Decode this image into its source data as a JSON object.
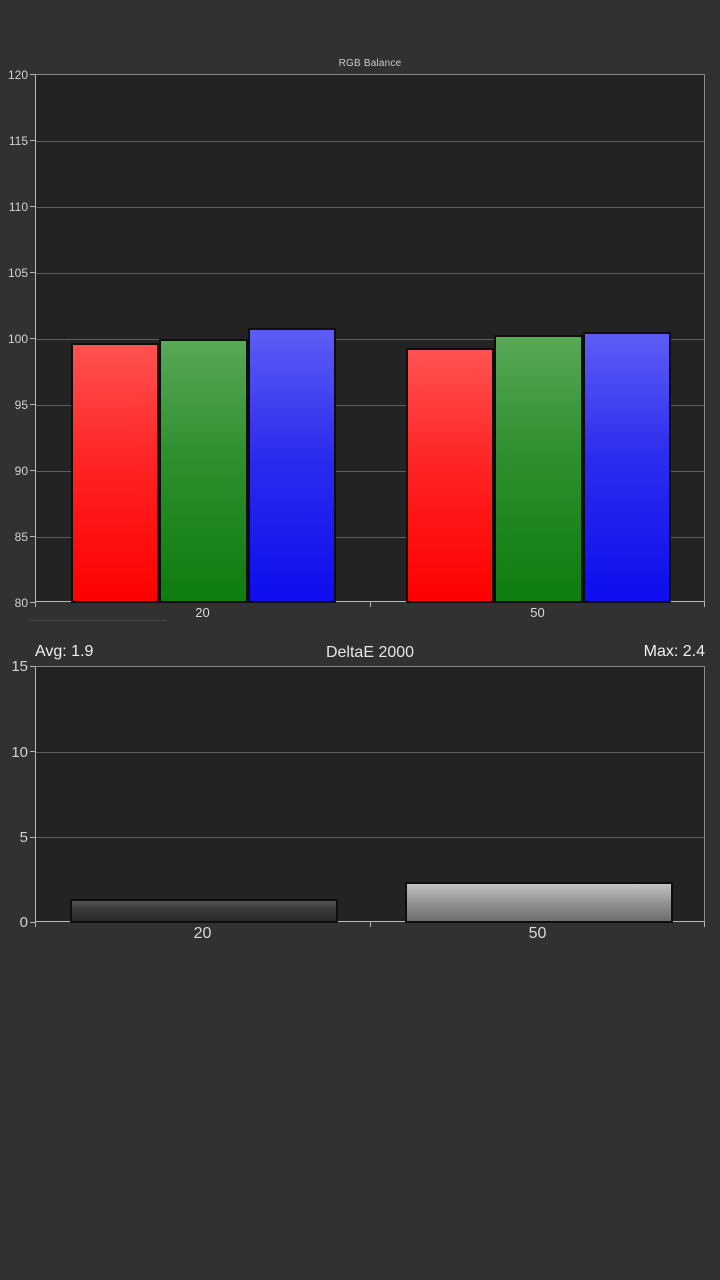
{
  "page": {
    "background_color": "#313131",
    "plot_background_color": "#232323"
  },
  "chart_data": [
    {
      "type": "bar",
      "title": "RGB Balance",
      "categories": [
        "20",
        "50"
      ],
      "series": [
        {
          "name": "Red",
          "values": [
            99.7,
            99.3
          ],
          "gradient": [
            "#ff5252",
            "#ff2424",
            "#fe0000"
          ]
        },
        {
          "name": "Green",
          "values": [
            100.0,
            100.3
          ],
          "gradient": [
            "#58a858",
            "#2e8f2e",
            "#0e7c0e"
          ]
        },
        {
          "name": "Blue",
          "values": [
            100.8,
            100.5
          ],
          "gradient": [
            "#5d5df5",
            "#2d2dee",
            "#0d0dee"
          ]
        }
      ],
      "ylim": [
        80,
        120
      ],
      "yticks": [
        80,
        85,
        90,
        95,
        100,
        105,
        110,
        115,
        120
      ],
      "grid": true,
      "legend": "none"
    },
    {
      "type": "bar",
      "title": "DeltaE 2000",
      "categories": [
        "20",
        "50"
      ],
      "values": [
        1.4,
        2.4
      ],
      "bar_gradients": [
        [
          "#525252",
          "#383838",
          "#282828"
        ],
        [
          "#c4c4c4",
          "#979797",
          "#6d6d6d"
        ]
      ],
      "ylim": [
        0,
        15
      ],
      "yticks": [
        0,
        5,
        10,
        15
      ],
      "grid": true,
      "legend": "none",
      "annotations": {
        "avg_label": "Avg: 1.9",
        "max_label": "Max: 2.4"
      }
    }
  ]
}
